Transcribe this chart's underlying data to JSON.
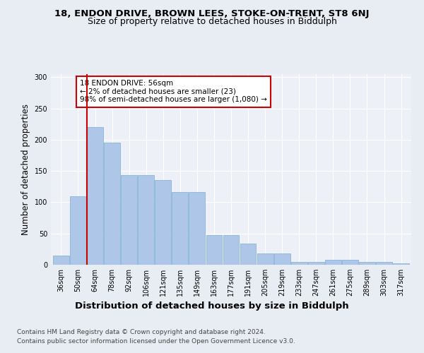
{
  "title1": "18, ENDON DRIVE, BROWN LEES, STOKE-ON-TRENT, ST8 6NJ",
  "title2": "Size of property relative to detached houses in Biddulph",
  "xlabel": "Distribution of detached houses by size in Biddulph",
  "ylabel": "Number of detached properties",
  "footnote1": "Contains HM Land Registry data © Crown copyright and database right 2024.",
  "footnote2": "Contains public sector information licensed under the Open Government Licence v3.0.",
  "categories": [
    "36sqm",
    "50sqm",
    "64sqm",
    "78sqm",
    "92sqm",
    "106sqm",
    "121sqm",
    "135sqm",
    "149sqm",
    "163sqm",
    "177sqm",
    "191sqm",
    "205sqm",
    "219sqm",
    "233sqm",
    "247sqm",
    "261sqm",
    "275sqm",
    "289sqm",
    "303sqm",
    "317sqm"
  ],
  "bar_heights": [
    15,
    110,
    220,
    195,
    143,
    143,
    135,
    116,
    116,
    48,
    48,
    34,
    18,
    18,
    5,
    5,
    8,
    8,
    4,
    4,
    2
  ],
  "bar_color": "#aec6e8",
  "bar_edge_color": "#7aafd4",
  "ref_line_x": 1.5,
  "ref_line_color": "#cc0000",
  "annotation_text": "18 ENDON DRIVE: 56sqm\n← 2% of detached houses are smaller (23)\n98% of semi-detached houses are larger (1,080) →",
  "annotation_box_color": "#ffffff",
  "annotation_box_edge": "#cc0000",
  "ylim": [
    0,
    305
  ],
  "yticks": [
    0,
    50,
    100,
    150,
    200,
    250,
    300
  ],
  "bg_color": "#e8edf4",
  "plot_bg_color": "#edf1f7",
  "title1_fontsize": 9.5,
  "title2_fontsize": 9,
  "xlabel_fontsize": 9.5,
  "ylabel_fontsize": 8.5,
  "tick_fontsize": 7,
  "footnote_fontsize": 6.5
}
